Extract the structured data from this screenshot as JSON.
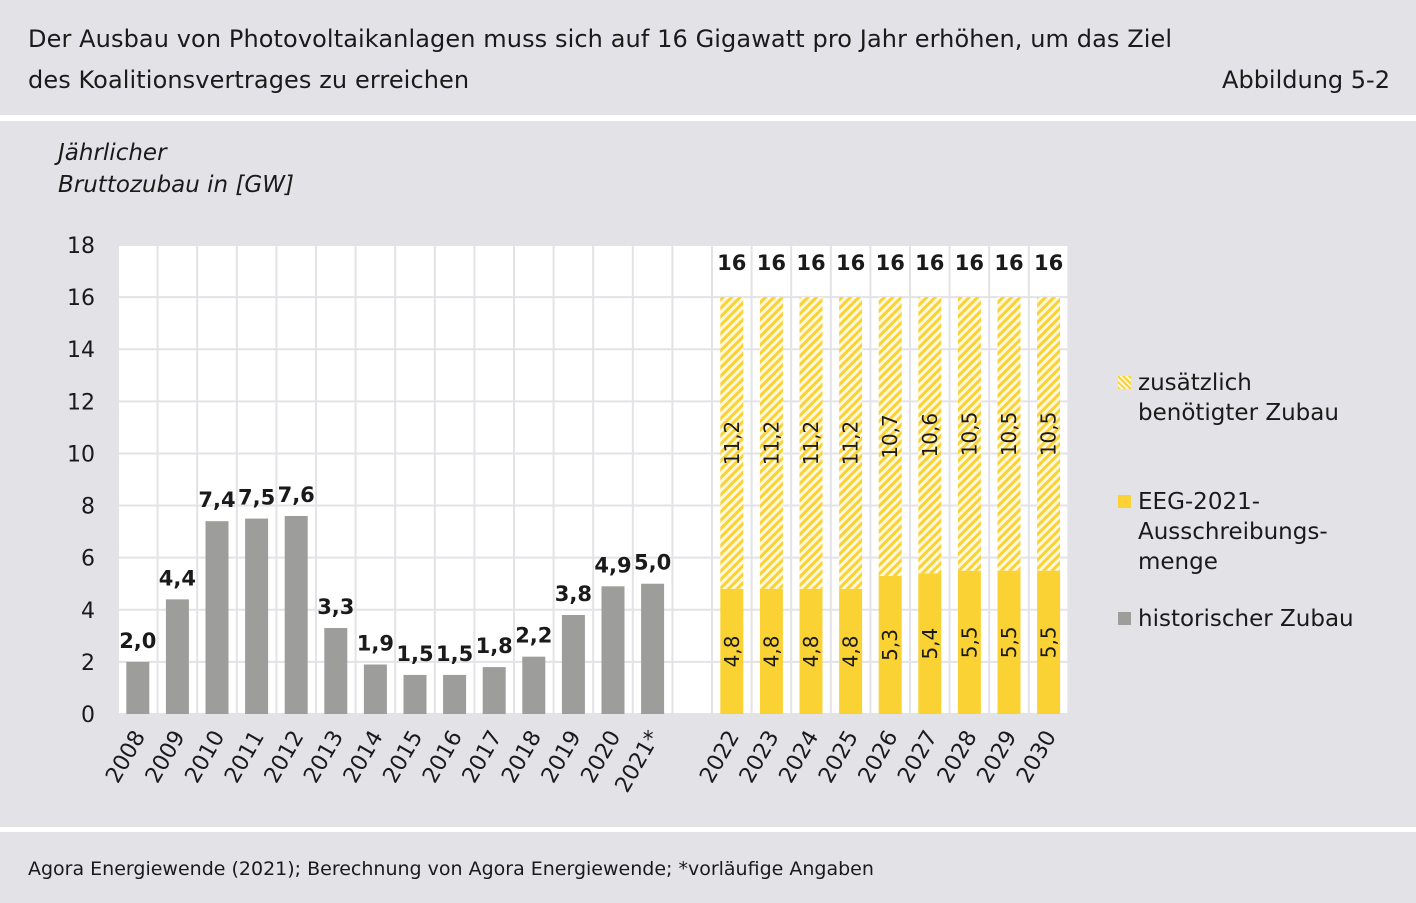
{
  "title_lines": [
    "Der Ausbau von Photovoltaikanlagen muss sich auf 16 Gigawatt pro Jahr erhöhen, um das Ziel",
    "des Koalitionsvertrages zu erreichen"
  ],
  "figure_label": "Abbildung 5-2",
  "footer": "Agora Energiewende (2021); Berechnung von Agora Energiewende; *vorläufige Angaben",
  "colors": {
    "historical": "#9d9d9b",
    "eeg": "#fad234",
    "additional_hatch": "#fad234",
    "panel_bg": "#e3e3e7"
  },
  "legend": [
    {
      "label_lines": [
        "zusätzlich",
        "benötigter Zubau"
      ],
      "style": "hatch"
    },
    {
      "label_lines": [
        "EEG-2021-",
        "Ausschreibungs-",
        "menge"
      ],
      "style": "solid"
    },
    {
      "label_lines": [
        "historischer Zubau"
      ],
      "style": "hist"
    }
  ],
  "chart_data": {
    "type": "bar",
    "ylabel_lines": [
      "Jährlicher",
      "Bruttozubau in [GW]"
    ],
    "ylim": [
      0,
      18
    ],
    "yticks": [
      0,
      2,
      4,
      6,
      8,
      10,
      12,
      14,
      16,
      18
    ],
    "grid": true,
    "legend_position": "right",
    "historical": {
      "name": "historischer Zubau",
      "categories": [
        "2008",
        "2009",
        "2010",
        "2011",
        "2012",
        "2013",
        "2014",
        "2015",
        "2016",
        "2017",
        "2018",
        "2019",
        "2020",
        "2021*"
      ],
      "values": [
        2.0,
        4.4,
        7.4,
        7.5,
        7.6,
        3.3,
        1.9,
        1.5,
        1.5,
        1.8,
        2.2,
        3.8,
        4.9,
        5.0
      ],
      "labels": [
        "2,0",
        "4,4",
        "7,4",
        "7,5",
        "7,6",
        "3,3",
        "1,9",
        "1,5",
        "1,5",
        "1,8",
        "2,2",
        "3,8",
        "4,9",
        "5,0"
      ]
    },
    "projection": {
      "categories": [
        "2022",
        "2023",
        "2024",
        "2025",
        "2026",
        "2027",
        "2028",
        "2029",
        "2030"
      ],
      "totals": [
        16,
        16,
        16,
        16,
        16,
        16,
        16,
        16,
        16
      ],
      "total_labels": [
        "16",
        "16",
        "16",
        "16",
        "16",
        "16",
        "16",
        "16",
        "16"
      ],
      "series": [
        {
          "name": "EEG-2021-Ausschreibungsmenge",
          "values": [
            4.8,
            4.8,
            4.8,
            4.8,
            5.3,
            5.4,
            5.5,
            5.5,
            5.5
          ],
          "labels": [
            "4,8",
            "4,8",
            "4,8",
            "4,8",
            "5,3",
            "5,4",
            "5,5",
            "5,5",
            "5,5"
          ]
        },
        {
          "name": "zusätzlich benötigter Zubau",
          "values": [
            11.2,
            11.2,
            11.2,
            11.2,
            10.7,
            10.6,
            10.5,
            10.5,
            10.5
          ],
          "labels": [
            "11,2",
            "11,2",
            "11,2",
            "11,2",
            "10,7",
            "10,6",
            "10,5",
            "10,5",
            "10,5"
          ]
        }
      ]
    }
  }
}
